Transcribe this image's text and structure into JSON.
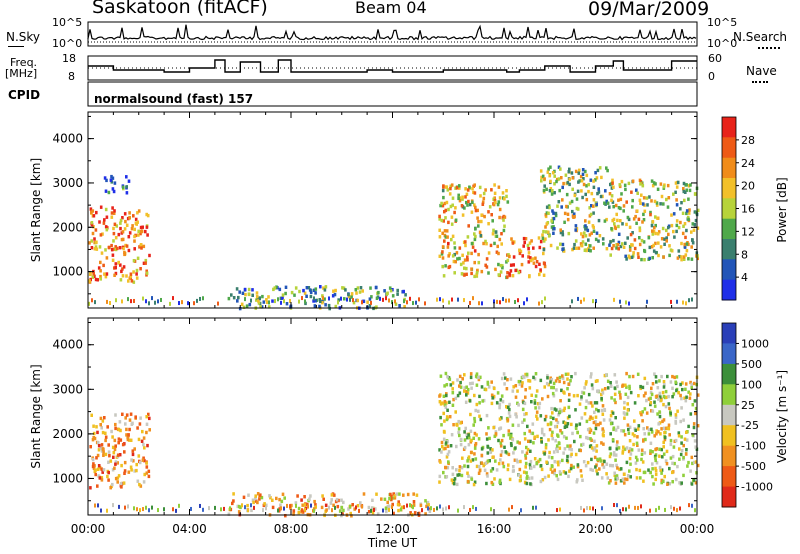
{
  "header": {
    "site": "Saskatoon (fitACF)",
    "beam": "Beam 04",
    "date": "09/Mar/2009"
  },
  "noise_panel": {
    "left_label": "N.Sky",
    "right_label": "N.Search",
    "ticks_left": [
      "10^5",
      "10^0"
    ],
    "ticks_right": [
      "10^5",
      "10^0"
    ]
  },
  "freq_panel": {
    "left_label_1": "Freq.",
    "left_label_2": "[MHz]",
    "right_label": "Nave",
    "ticks_left": [
      "18",
      "8"
    ],
    "ticks_right": [
      "60",
      "0"
    ]
  },
  "cpid": {
    "label": "CPID",
    "program": "normalsound (fast) 157"
  },
  "colors": {
    "power_scale": [
      "#1f2fe8",
      "#2255b8",
      "#3a7f6e",
      "#4fa84a",
      "#b7d33a",
      "#f2c02a",
      "#f08c1a",
      "#ee5a16",
      "#e8231a"
    ],
    "velocity_scale": [
      "#2a3fb8",
      "#3a66c8",
      "#3c8f3a",
      "#8fcf3a",
      "#c8c8c0",
      "#f0c020",
      "#f09020",
      "#ee5a16",
      "#e02a1a"
    ]
  },
  "chart_data": [
    {
      "type": "heatmap",
      "title": "Power",
      "xlabel": "",
      "ylabel": "Slant Range [km]",
      "x_ticks": [
        "00:00",
        "04:00",
        "08:00",
        "12:00",
        "16:00",
        "20:00",
        "00:00"
      ],
      "y_ticks": [
        "1000",
        "2000",
        "3000",
        "4000"
      ],
      "ylim": [
        180,
        4600
      ],
      "colorbar": {
        "label": "Power [dB]",
        "ticks": [
          "4",
          "8",
          "12",
          "16",
          "20",
          "24",
          "28"
        ]
      },
      "regions": [
        {
          "t0": 0.0,
          "t1": 2.4,
          "r0": 800,
          "r1": 2500,
          "level": 0.75
        },
        {
          "t0": 0.5,
          "t1": 1.6,
          "r0": 2800,
          "r1": 3200,
          "level": 0.2
        },
        {
          "t0": 5.5,
          "t1": 12.5,
          "r0": 200,
          "r1": 700,
          "level": 0.35
        },
        {
          "t0": 13.8,
          "t1": 16.5,
          "r0": 900,
          "r1": 3000,
          "level": 0.6
        },
        {
          "t0": 16.5,
          "t1": 18.0,
          "r0": 900,
          "r1": 1800,
          "level": 0.8
        },
        {
          "t0": 17.8,
          "t1": 20.5,
          "r0": 1500,
          "r1": 3400,
          "level": 0.45
        },
        {
          "t0": 20.5,
          "t1": 24.0,
          "r0": 1300,
          "r1": 3100,
          "level": 0.5
        }
      ]
    },
    {
      "type": "heatmap",
      "title": "Velocity",
      "xlabel": "Time UT",
      "ylabel": "Slant Range [km]",
      "x_ticks": [
        "00:00",
        "04:00",
        "08:00",
        "12:00",
        "16:00",
        "20:00",
        "00:00"
      ],
      "y_ticks": [
        "1000",
        "2000",
        "3000",
        "4000"
      ],
      "ylim": [
        180,
        4600
      ],
      "colorbar": {
        "label": "Velocity [m s⁻¹]",
        "ticks": [
          "1000",
          "500",
          "100",
          "25",
          "-25",
          "-100",
          "-500",
          "-1000"
        ]
      },
      "regions": [
        {
          "t0": 0.0,
          "t1": 2.4,
          "r0": 800,
          "r1": 2500,
          "level": 0.7
        },
        {
          "t0": 5.5,
          "t1": 13.5,
          "r0": 200,
          "r1": 700,
          "level": 0.65
        },
        {
          "t0": 13.8,
          "t1": 24.0,
          "r0": 900,
          "r1": 3400,
          "level": 0.5
        }
      ]
    }
  ]
}
